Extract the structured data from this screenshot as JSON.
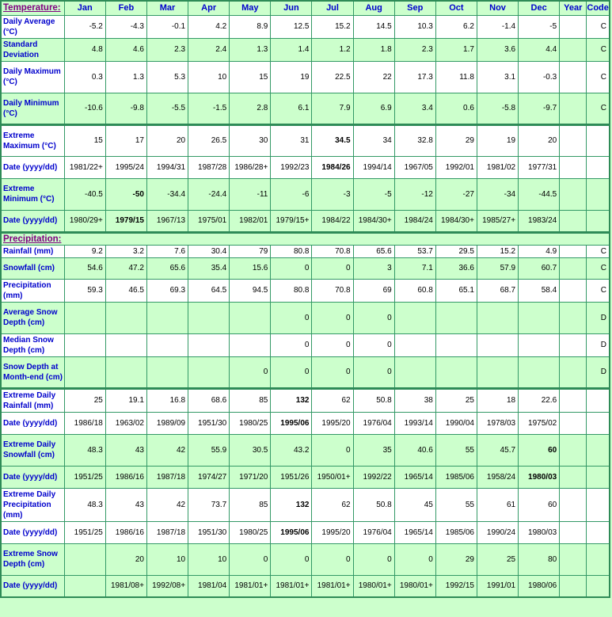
{
  "colors": {
    "section_background": "#ccffcc",
    "row_white": "#ffffff",
    "grid_border": "#339966",
    "section_separator": "#2e8b57",
    "label_text": "#0000cc",
    "section_header_text": "#800080",
    "data_text": "#000000"
  },
  "table": {
    "corner_header": "Temperature:",
    "columns": [
      "Jan",
      "Feb",
      "Mar",
      "Apr",
      "May",
      "Jun",
      "Jul",
      "Aug",
      "Sep",
      "Oct",
      "Nov",
      "Dec",
      "Year",
      "Code"
    ],
    "rows": [
      {
        "label": "Daily Average (°C)",
        "shade": "white",
        "values": [
          "-5.2",
          "-4.3",
          "-0.1",
          "4.2",
          "8.9",
          "12.5",
          "15.2",
          "14.5",
          "10.3",
          "6.2",
          "-1.4",
          "-5"
        ],
        "year": "",
        "code": "C"
      },
      {
        "label": "Standard Deviation",
        "shade": "green",
        "values": [
          "4.8",
          "4.6",
          "2.3",
          "2.4",
          "1.3",
          "1.4",
          "1.2",
          "1.8",
          "2.3",
          "1.7",
          "3.6",
          "4.4"
        ],
        "year": "",
        "code": "C"
      },
      {
        "label": "Daily Maximum (°C)",
        "shade": "white",
        "values": [
          "0.3",
          "1.3",
          "5.3",
          "10",
          "15",
          "19",
          "22.5",
          "22",
          "17.3",
          "11.8",
          "3.1",
          "-0.3"
        ],
        "year": "",
        "code": "C"
      },
      {
        "label": "Daily Minimum (°C)",
        "shade": "green",
        "values": [
          "-10.6",
          "-9.8",
          "-5.5",
          "-1.5",
          "2.8",
          "6.1",
          "7.9",
          "6.9",
          "3.4",
          "0.6",
          "-5.8",
          "-9.7"
        ],
        "year": "",
        "code": "C"
      },
      {
        "label": "Extreme Maximum (°C)",
        "shade": "white",
        "thick": true,
        "bold": [
          6
        ],
        "values": [
          "15",
          "17",
          "20",
          "26.5",
          "30",
          "31",
          "34.5",
          "34",
          "32.8",
          "29",
          "19",
          "20"
        ],
        "year": "",
        "code": ""
      },
      {
        "label": "Date (yyyy/dd)",
        "shade": "white",
        "bold": [
          6
        ],
        "values": [
          "1981/22+",
          "1995/24",
          "1994/31",
          "1987/28",
          "1986/28+",
          "1992/23",
          "1984/26",
          "1994/14",
          "1967/05",
          "1992/01",
          "1981/02",
          "1977/31"
        ],
        "year": "",
        "code": ""
      },
      {
        "label": "Extreme Minimum (°C)",
        "shade": "green",
        "bold": [
          1
        ],
        "values": [
          "-40.5",
          "-50",
          "-34.4",
          "-24.4",
          "-11",
          "-6",
          "-3",
          "-5",
          "-12",
          "-27",
          "-34",
          "-44.5"
        ],
        "year": "",
        "code": ""
      },
      {
        "label": "Date (yyyy/dd)",
        "shade": "green",
        "bold": [
          1
        ],
        "values": [
          "1980/29+",
          "1979/15",
          "1967/13",
          "1975/01",
          "1982/01",
          "1979/15+",
          "1984/22",
          "1984/30+",
          "1984/24",
          "1984/30+",
          "1985/27+",
          "1983/24"
        ],
        "year": "",
        "code": ""
      },
      {
        "type": "section",
        "label": "Precipitation:",
        "shade": "green",
        "thick": true
      },
      {
        "label": "Rainfall (mm)",
        "shade": "white",
        "values": [
          "9.2",
          "3.2",
          "7.6",
          "30.4",
          "79",
          "80.8",
          "70.8",
          "65.6",
          "53.7",
          "29.5",
          "15.2",
          "4.9"
        ],
        "year": "",
        "code": "C"
      },
      {
        "label": "Snowfall (cm)",
        "shade": "green",
        "values": [
          "54.6",
          "47.2",
          "65.6",
          "35.4",
          "15.6",
          "0",
          "0",
          "3",
          "7.1",
          "36.6",
          "57.9",
          "60.7"
        ],
        "year": "",
        "code": "C"
      },
      {
        "label": "Precipitation (mm)",
        "shade": "white",
        "values": [
          "59.3",
          "46.5",
          "69.3",
          "64.5",
          "94.5",
          "80.8",
          "70.8",
          "69",
          "60.8",
          "65.1",
          "68.7",
          "58.4"
        ],
        "year": "",
        "code": "C"
      },
      {
        "label": "Average Snow Depth (cm)",
        "shade": "green",
        "values": [
          "",
          "",
          "",
          "",
          "",
          "0",
          "0",
          "0",
          "",
          "",
          "",
          ""
        ],
        "year": "",
        "code": "D"
      },
      {
        "label": "Median Snow Depth (cm)",
        "shade": "white",
        "values": [
          "",
          "",
          "",
          "",
          "",
          "0",
          "0",
          "0",
          "",
          "",
          "",
          ""
        ],
        "year": "",
        "code": "D"
      },
      {
        "label": "Snow Depth at Month-end (cm)",
        "shade": "green",
        "values": [
          "",
          "",
          "",
          "",
          "0",
          "0",
          "0",
          "0",
          "",
          "",
          "",
          ""
        ],
        "year": "",
        "code": "D"
      },
      {
        "label": "Extreme Daily Rainfall (mm)",
        "shade": "white",
        "thick": true,
        "bold": [
          5
        ],
        "values": [
          "25",
          "19.1",
          "16.8",
          "68.6",
          "85",
          "132",
          "62",
          "50.8",
          "38",
          "25",
          "18",
          "22.6"
        ],
        "year": "",
        "code": ""
      },
      {
        "label": "Date (yyyy/dd)",
        "shade": "white",
        "bold": [
          5
        ],
        "values": [
          "1986/18",
          "1963/02",
          "1989/09",
          "1951/30",
          "1980/25",
          "1995/06",
          "1995/20",
          "1976/04",
          "1993/14",
          "1990/04",
          "1978/03",
          "1975/02"
        ],
        "year": "",
        "code": ""
      },
      {
        "label": "Extreme Daily Snowfall (cm)",
        "shade": "green",
        "bold": [
          11
        ],
        "values": [
          "48.3",
          "43",
          "42",
          "55.9",
          "30.5",
          "43.2",
          "0",
          "35",
          "40.6",
          "55",
          "45.7",
          "60"
        ],
        "year": "",
        "code": ""
      },
      {
        "label": "Date (yyyy/dd)",
        "shade": "green",
        "bold": [
          11
        ],
        "values": [
          "1951/25",
          "1986/16",
          "1987/18",
          "1974/27",
          "1971/20",
          "1951/26",
          "1950/01+",
          "1992/22",
          "1965/14",
          "1985/06",
          "1958/24",
          "1980/03"
        ],
        "year": "",
        "code": ""
      },
      {
        "label": "Extreme Daily Precipitation (mm)",
        "shade": "white",
        "bold": [
          5
        ],
        "values": [
          "48.3",
          "43",
          "42",
          "73.7",
          "85",
          "132",
          "62",
          "50.8",
          "45",
          "55",
          "61",
          "60"
        ],
        "year": "",
        "code": ""
      },
      {
        "label": "Date (yyyy/dd)",
        "shade": "white",
        "bold": [
          5
        ],
        "values": [
          "1951/25",
          "1986/16",
          "1987/18",
          "1951/30",
          "1980/25",
          "1995/06",
          "1995/20",
          "1976/04",
          "1965/14",
          "1985/06",
          "1990/24",
          "1980/03"
        ],
        "year": "",
        "code": ""
      },
      {
        "label": "Extreme Snow Depth (cm)",
        "shade": "green",
        "values": [
          "",
          "20",
          "10",
          "10",
          "0",
          "0",
          "0",
          "0",
          "0",
          "29",
          "25",
          "80"
        ],
        "year": "",
        "code": ""
      },
      {
        "label": "Date (yyyy/dd)",
        "shade": "green",
        "values": [
          "",
          "1981/08+",
          "1992/08+",
          "1981/04",
          "1981/01+",
          "1981/01+",
          "1981/01+",
          "1980/01+",
          "1980/01+",
          "1992/15",
          "1991/01",
          "1980/06"
        ],
        "year": "",
        "code": ""
      }
    ]
  }
}
